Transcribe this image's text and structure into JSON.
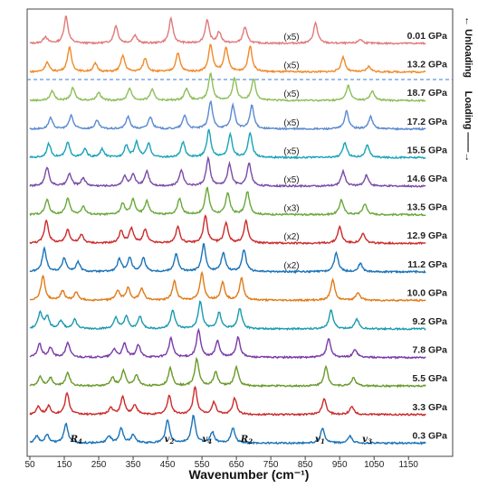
{
  "chart_data": {
    "type": "line",
    "title": "",
    "xlabel": "Wavenumber (cm⁻¹)",
    "ylabel": "",
    "xlim": [
      50,
      1200
    ],
    "xticks": [
      50,
      150,
      250,
      350,
      450,
      550,
      650,
      750,
      850,
      950,
      1050,
      1150
    ],
    "grid": false,
    "side_labels": {
      "unloading": "← Unloading",
      "loading": "Loading ——→"
    },
    "mode_labels": [
      {
        "text": "R",
        "sub": "4",
        "x": 185
      },
      {
        "text": "v",
        "sub": "2",
        "x": 455
      },
      {
        "text": "v",
        "sub": "4",
        "x": 565
      },
      {
        "text": "R",
        "sub": "2",
        "x": 680
      },
      {
        "text": "v",
        "sub": "1",
        "x": 893
      },
      {
        "text": "v",
        "sub": "3",
        "x": 1030
      }
    ],
    "series": [
      {
        "name": "0.01 GPa",
        "group": "unloading",
        "color": "#e07a7a",
        "scale": "(x5)",
        "peaks": [
          [
            95,
            0.25
          ],
          [
            155,
            1.0
          ],
          [
            300,
            0.65
          ],
          [
            355,
            0.3
          ],
          [
            460,
            0.9
          ],
          [
            565,
            0.85
          ],
          [
            600,
            0.4
          ],
          [
            675,
            0.6
          ],
          [
            880,
            0.75
          ],
          [
            1010,
            0.15
          ]
        ]
      },
      {
        "name": "13.2 GPa",
        "group": "unloading",
        "color": "#f08a2a",
        "scale": "(x5)",
        "peaks": [
          [
            100,
            0.35
          ],
          [
            165,
            0.9
          ],
          [
            240,
            0.3
          ],
          [
            320,
            0.6
          ],
          [
            385,
            0.5
          ],
          [
            480,
            0.7
          ],
          [
            575,
            1.0
          ],
          [
            620,
            0.9
          ],
          [
            690,
            0.95
          ],
          [
            960,
            0.55
          ],
          [
            1035,
            0.2
          ]
        ]
      },
      {
        "name": "18.7 GPa",
        "group": "loading",
        "color": "#8cbf5a",
        "scale": "(x5)",
        "peaks": [
          [
            115,
            0.35
          ],
          [
            175,
            0.45
          ],
          [
            250,
            0.3
          ],
          [
            340,
            0.45
          ],
          [
            405,
            0.4
          ],
          [
            505,
            0.45
          ],
          [
            575,
            1.0
          ],
          [
            645,
            0.8
          ],
          [
            700,
            0.8
          ],
          [
            975,
            0.55
          ],
          [
            1045,
            0.35
          ]
        ]
      },
      {
        "name": "17.2 GPa",
        "group": "loading",
        "color": "#5b8ad0",
        "scale": "(x5)",
        "peaks": [
          [
            110,
            0.4
          ],
          [
            170,
            0.5
          ],
          [
            245,
            0.3
          ],
          [
            335,
            0.45
          ],
          [
            400,
            0.45
          ],
          [
            500,
            0.5
          ],
          [
            575,
            1.0
          ],
          [
            640,
            0.85
          ],
          [
            695,
            0.85
          ],
          [
            970,
            0.65
          ],
          [
            1040,
            0.45
          ]
        ]
      },
      {
        "name": "15.5 GPa",
        "group": "loading",
        "color": "#1aa3b8",
        "scale": "(x5)",
        "peaks": [
          [
            105,
            0.5
          ],
          [
            160,
            0.55
          ],
          [
            210,
            0.3
          ],
          [
            260,
            0.3
          ],
          [
            330,
            0.45
          ],
          [
            360,
            0.55
          ],
          [
            395,
            0.5
          ],
          [
            495,
            0.55
          ],
          [
            570,
            1.0
          ],
          [
            632,
            0.85
          ],
          [
            690,
            0.9
          ],
          [
            965,
            0.55
          ],
          [
            1030,
            0.45
          ]
        ]
      },
      {
        "name": "14.6 GPa",
        "group": "loading",
        "color": "#7a4aa8",
        "scale": "(x5)",
        "peaks": [
          [
            100,
            0.7
          ],
          [
            165,
            0.45
          ],
          [
            205,
            0.3
          ],
          [
            325,
            0.35
          ],
          [
            350,
            0.4
          ],
          [
            390,
            0.55
          ],
          [
            490,
            0.6
          ],
          [
            568,
            1.0
          ],
          [
            630,
            0.8
          ],
          [
            687,
            0.85
          ],
          [
            960,
            0.55
          ],
          [
            1028,
            0.4
          ]
        ]
      },
      {
        "name": "13.5 GPa",
        "group": "loading",
        "color": "#6aa83a",
        "scale": "(x3)",
        "peaks": [
          [
            100,
            0.55
          ],
          [
            160,
            0.6
          ],
          [
            205,
            0.3
          ],
          [
            320,
            0.4
          ],
          [
            350,
            0.55
          ],
          [
            390,
            0.5
          ],
          [
            485,
            0.6
          ],
          [
            565,
            1.0
          ],
          [
            625,
            0.8
          ],
          [
            682,
            0.85
          ],
          [
            955,
            0.55
          ],
          [
            1023,
            0.4
          ]
        ]
      },
      {
        "name": "12.9 GPa",
        "group": "loading",
        "color": "#cc2a2a",
        "scale": "(x2)",
        "peaks": [
          [
            98,
            0.85
          ],
          [
            160,
            0.5
          ],
          [
            200,
            0.3
          ],
          [
            315,
            0.45
          ],
          [
            345,
            0.55
          ],
          [
            385,
            0.5
          ],
          [
            480,
            0.6
          ],
          [
            560,
            1.0
          ],
          [
            620,
            0.75
          ],
          [
            678,
            0.8
          ],
          [
            950,
            0.6
          ],
          [
            1018,
            0.35
          ]
        ]
      },
      {
        "name": "11.2 GPa",
        "group": "loading",
        "color": "#1a73b8",
        "scale": "(x2)",
        "peaks": [
          [
            92,
            0.85
          ],
          [
            150,
            0.5
          ],
          [
            190,
            0.35
          ],
          [
            310,
            0.45
          ],
          [
            340,
            0.5
          ],
          [
            380,
            0.5
          ],
          [
            475,
            0.65
          ],
          [
            555,
            1.0
          ],
          [
            612,
            0.7
          ],
          [
            672,
            0.8
          ],
          [
            940,
            0.7
          ],
          [
            1010,
            0.3
          ]
        ]
      },
      {
        "name": "10.0 GPa",
        "group": "loading",
        "color": "#e07b1a",
        "scale": "",
        "peaks": [
          [
            88,
            0.9
          ],
          [
            145,
            0.35
          ],
          [
            185,
            0.3
          ],
          [
            305,
            0.35
          ],
          [
            335,
            0.45
          ],
          [
            375,
            0.45
          ],
          [
            470,
            0.7
          ],
          [
            550,
            1.0
          ],
          [
            610,
            0.65
          ],
          [
            665,
            0.8
          ],
          [
            930,
            0.75
          ],
          [
            1003,
            0.3
          ]
        ]
      },
      {
        "name": "9.2 GPa",
        "group": "loading",
        "color": "#1a9ab0",
        "scale": "",
        "peaks": [
          [
            80,
            0.6
          ],
          [
            100,
            0.45
          ],
          [
            140,
            0.3
          ],
          [
            180,
            0.35
          ],
          [
            300,
            0.4
          ],
          [
            330,
            0.45
          ],
          [
            370,
            0.45
          ],
          [
            465,
            0.7
          ],
          [
            545,
            1.0
          ],
          [
            600,
            0.6
          ],
          [
            660,
            0.75
          ],
          [
            925,
            0.7
          ],
          [
            1000,
            0.35
          ]
        ]
      },
      {
        "name": "7.8 GPa",
        "group": "loading",
        "color": "#7a3aa8",
        "scale": "",
        "peaks": [
          [
            78,
            0.5
          ],
          [
            110,
            0.35
          ],
          [
            160,
            0.55
          ],
          [
            295,
            0.3
          ],
          [
            325,
            0.5
          ],
          [
            365,
            0.45
          ],
          [
            460,
            0.7
          ],
          [
            540,
            1.0
          ],
          [
            595,
            0.6
          ],
          [
            655,
            0.75
          ],
          [
            918,
            0.7
          ],
          [
            995,
            0.3
          ]
        ]
      },
      {
        "name": "5.5 GPa",
        "group": "loading",
        "color": "#6a9a2a",
        "scale": "",
        "peaks": [
          [
            80,
            0.35
          ],
          [
            110,
            0.3
          ],
          [
            160,
            0.5
          ],
          [
            290,
            0.3
          ],
          [
            322,
            0.55
          ],
          [
            360,
            0.4
          ],
          [
            458,
            0.65
          ],
          [
            535,
            1.0
          ],
          [
            590,
            0.5
          ],
          [
            650,
            0.7
          ],
          [
            910,
            0.7
          ],
          [
            990,
            0.3
          ]
        ]
      },
      {
        "name": "3.3 GPa",
        "group": "loading",
        "color": "#cc2a2a",
        "scale": "",
        "peaks": [
          [
            75,
            0.3
          ],
          [
            105,
            0.3
          ],
          [
            158,
            0.8
          ],
          [
            285,
            0.25
          ],
          [
            320,
            0.65
          ],
          [
            355,
            0.35
          ],
          [
            455,
            0.7
          ],
          [
            530,
            1.0
          ],
          [
            585,
            0.45
          ],
          [
            645,
            0.6
          ],
          [
            905,
            0.6
          ],
          [
            985,
            0.3
          ]
        ]
      },
      {
        "name": "0.3 GPa",
        "group": "loading",
        "color": "#1a73b8",
        "scale": "",
        "peaks": [
          [
            70,
            0.25
          ],
          [
            100,
            0.3
          ],
          [
            155,
            0.7
          ],
          [
            280,
            0.25
          ],
          [
            315,
            0.55
          ],
          [
            350,
            0.3
          ],
          [
            450,
            0.85
          ],
          [
            525,
            1.0
          ],
          [
            580,
            0.4
          ],
          [
            640,
            0.55
          ],
          [
            900,
            0.55
          ],
          [
            980,
            0.25
          ]
        ]
      }
    ]
  }
}
